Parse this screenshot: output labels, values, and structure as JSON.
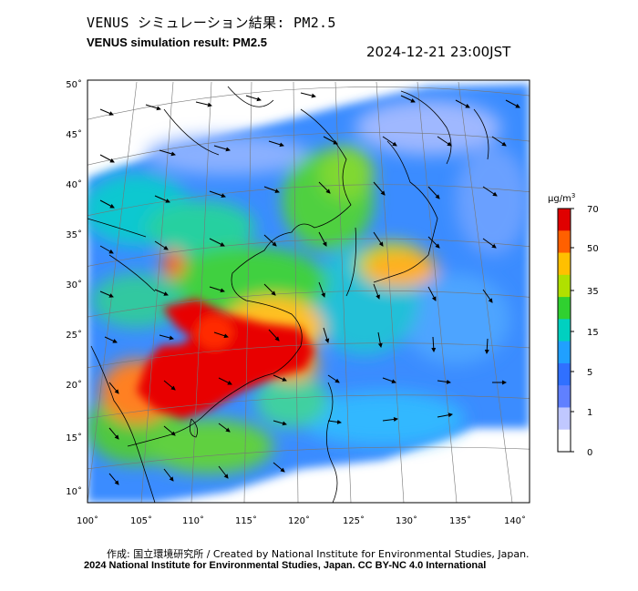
{
  "header": {
    "title_jp": "VENUS シミュレーション結果: PM2.5",
    "title_en": "VENUS simulation result: PM2.5",
    "datetime": "2024-12-21 23:00JST"
  },
  "map": {
    "variable": "PM2.5",
    "lon_labels": [
      "100˚",
      "105˚",
      "110˚",
      "115˚",
      "120˚",
      "125˚",
      "130˚",
      "135˚",
      "140˚"
    ],
    "lat_labels": [
      "50˚",
      "45˚",
      "40˚",
      "35˚",
      "30˚",
      "25˚",
      "20˚",
      "15˚",
      "10˚"
    ],
    "overlay": "wind-vectors"
  },
  "colorbar": {
    "unit_base": "μg/m",
    "unit_exp": "3",
    "labels": [
      "70",
      "50",
      "35",
      "15",
      "5",
      "1",
      "0"
    ],
    "colors": [
      "#e00000",
      "#ff6000",
      "#ffc000",
      "#b0e000",
      "#30d030",
      "#00d0c0",
      "#20a0ff",
      "#3070ff",
      "#6080ff",
      "#c0c8ff",
      "#ffffff"
    ]
  },
  "footer": {
    "credit": "作成: 国立環境研究所 / Created by National Institute for Environmental Studies, Japan.",
    "license": "2024 National Institute for Environmental Studies, Japan. CC BY-NC 4.0 International"
  }
}
